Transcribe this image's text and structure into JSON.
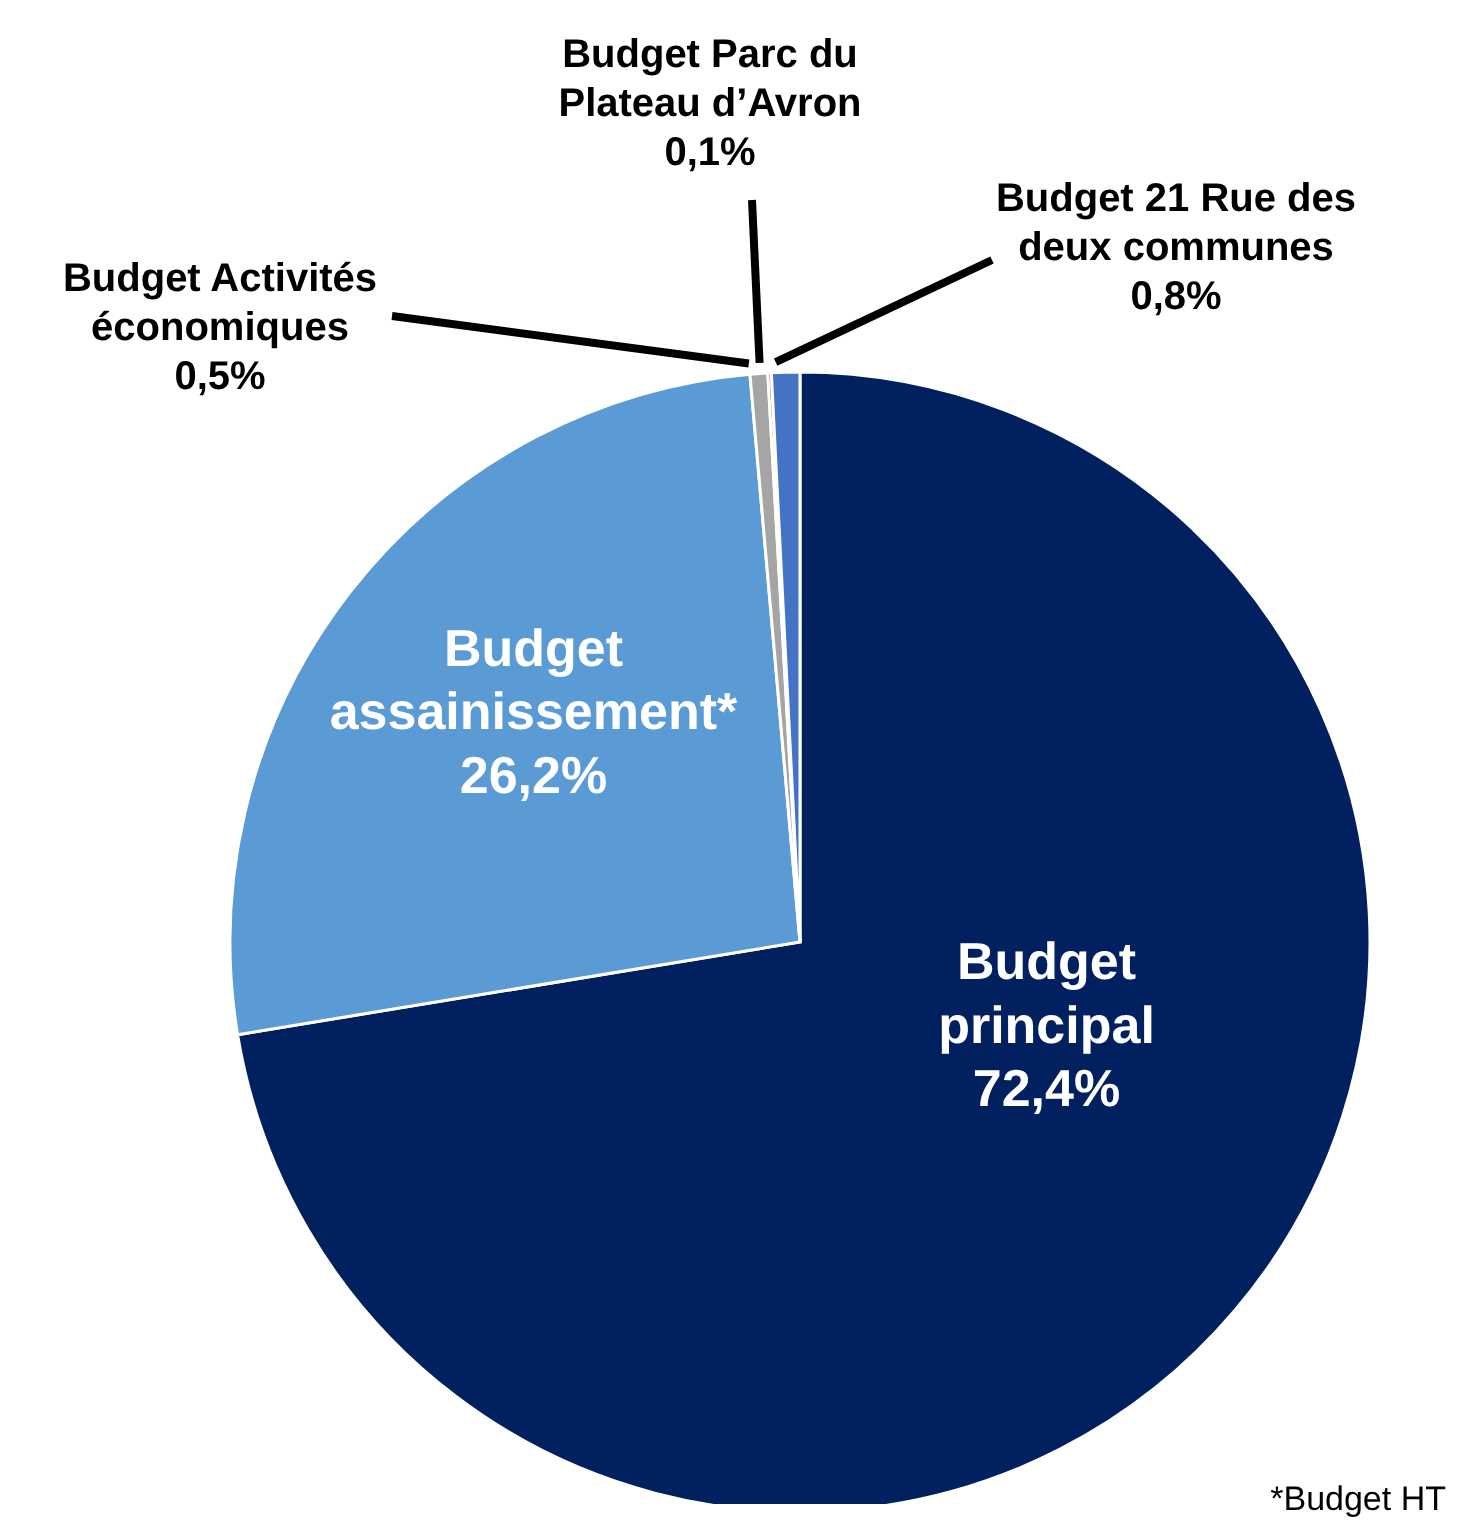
{
  "chart_data": {
    "type": "pie",
    "categories": [
      "Budget principal",
      "Budget assainissement*",
      "Budget Activités économiques",
      "Budget Parc du Plateau d’Avron",
      "Budget 21 Rue des deux communes"
    ],
    "values": [
      72.4,
      26.2,
      0.5,
      0.1,
      0.8
    ],
    "value_labels": [
      "72,4%",
      "26,2%",
      "0,5%",
      "0,1%",
      "0,8%"
    ],
    "colors": [
      "#002060",
      "#5b9bd5",
      "#a5a5a5",
      "#e03030",
      "#4472c4"
    ],
    "annotations": [
      "*Budget HT"
    ],
    "legend": false
  }
}
